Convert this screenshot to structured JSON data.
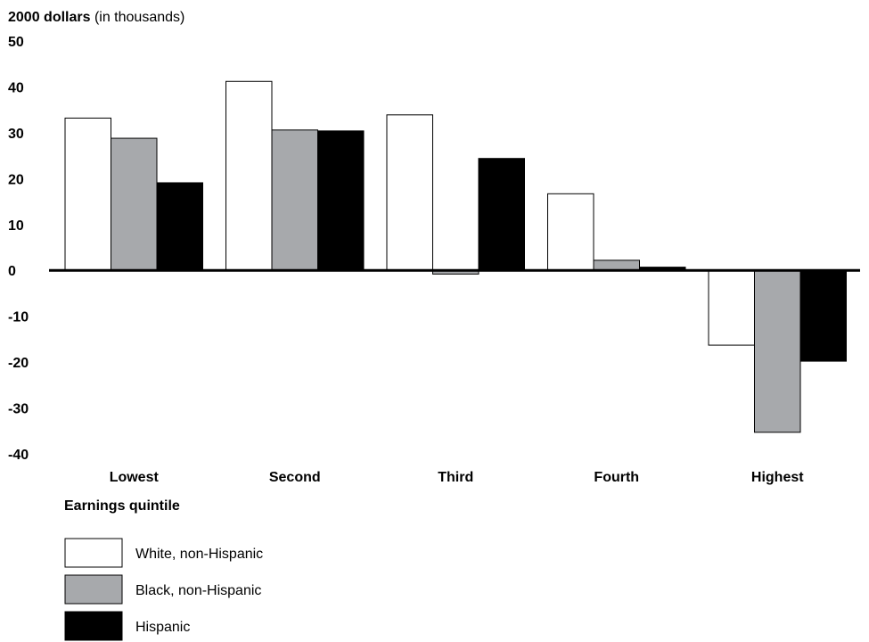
{
  "chart_data": {
    "type": "bar",
    "ylabel_bold": "2000 dollars",
    "ylabel_rest": " (in thousands)",
    "xlabel": "Earnings quintile",
    "categories": [
      "Lowest",
      "Second",
      "Third",
      "Fourth",
      "Highest"
    ],
    "series": [
      {
        "name": "White, non-Hispanic",
        "color": "#ffffff",
        "values": [
          33.2,
          41.2,
          33.9,
          16.7,
          -16.3
        ]
      },
      {
        "name": "Black, non-Hispanic",
        "color": "#a7a9ac",
        "values": [
          28.8,
          30.6,
          -0.8,
          2.2,
          -35.3
        ]
      },
      {
        "name": "Hispanic",
        "color": "#000000",
        "values": [
          19.1,
          30.4,
          24.4,
          0.7,
          -19.8
        ]
      }
    ],
    "yticks": [
      "50",
      "40",
      "30",
      "20",
      "10",
      "0",
      "-10",
      "-20",
      "-30",
      "-40"
    ],
    "ylim": [
      -40,
      50
    ],
    "grid": false,
    "legend_position": "bottom-left"
  }
}
